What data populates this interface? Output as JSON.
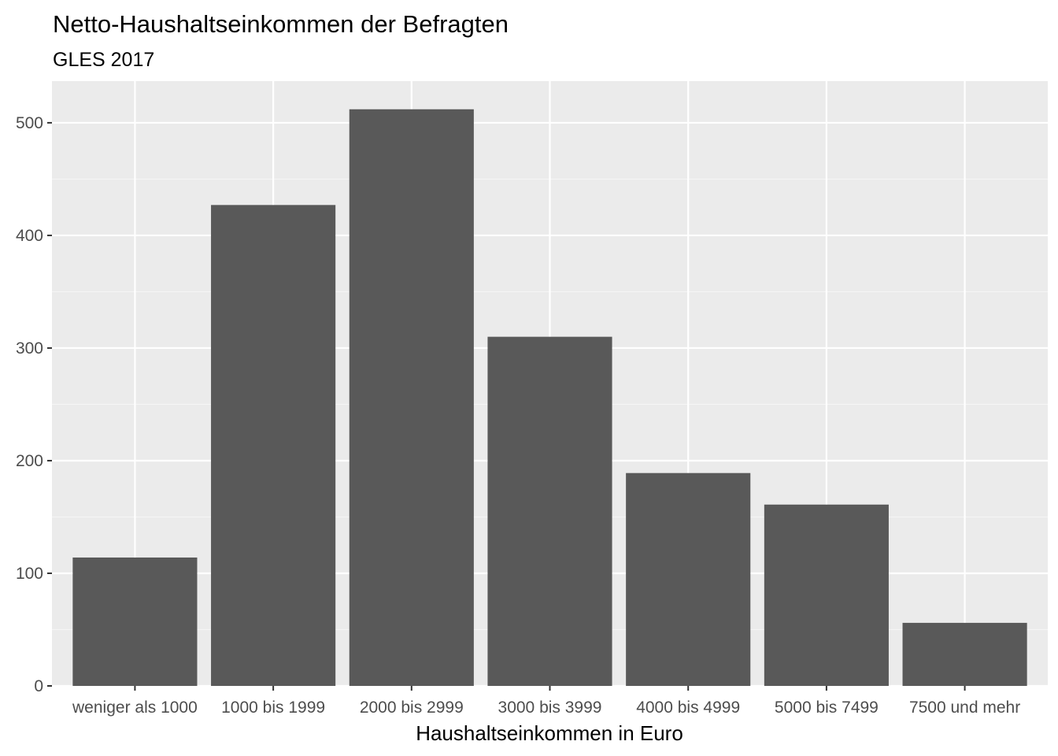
{
  "chart_data": {
    "type": "bar",
    "title": "Netto-Haushaltseinkommen der Befragten",
    "subtitle": "GLES 2017",
    "xlabel": "Haushaltseinkommen in Euro",
    "ylabel": "",
    "categories": [
      "weniger als 1000",
      "1000 bis 1999",
      "2000 bis 2999",
      "3000 bis 3999",
      "4000 bis 4999",
      "5000 bis 7499",
      "7500 und mehr"
    ],
    "values": [
      114,
      427,
      512,
      310,
      189,
      161,
      56
    ],
    "ylim": [
      0,
      537
    ],
    "yticks": [
      0,
      100,
      200,
      300,
      400,
      500
    ],
    "ytick_labels": [
      "0",
      "100",
      "200",
      "300",
      "400",
      "500"
    ],
    "grid": true,
    "legend": "none",
    "colors": {
      "bar": "#595959",
      "panel": "#ebebeb",
      "grid_major": "#ffffff",
      "grid_minor": "#f5f5f5",
      "tick": "#333333"
    }
  }
}
